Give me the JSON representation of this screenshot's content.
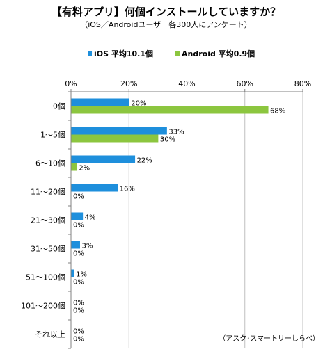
{
  "title": "【有料アプリ】何個インストールしていますか？",
  "subtitle": "（iOS／Androidユーザ　各300人にアンケート）",
  "credit": "（アスク･スマートリーしらべ）",
  "colors": {
    "ios": "#1e8fdc",
    "android": "#8cc63f",
    "grid": "#bfbfbf",
    "axis": "#808080"
  },
  "chart_data": {
    "type": "bar",
    "orientation": "horizontal",
    "categories": [
      "0個",
      "1～5個",
      "6～10個",
      "11～20個",
      "21～30個",
      "31～50個",
      "51～100個",
      "101～200個",
      "それ以上"
    ],
    "series": [
      {
        "name": "iOS 平均10.1個",
        "values": [
          20,
          33,
          22,
          16,
          4,
          3,
          1,
          0,
          0
        ]
      },
      {
        "name": "Android 平均0.9個",
        "values": [
          68,
          30,
          2,
          0,
          0,
          0,
          0,
          0,
          0
        ]
      }
    ],
    "value_labels": [
      [
        "20%",
        "33%",
        "22%",
        "16%",
        "4%",
        "3%",
        "1%",
        "0%",
        "0%"
      ],
      [
        "68%",
        "30%",
        "2%",
        "0%",
        "0%",
        "0%",
        "0%",
        "0%",
        "0%"
      ]
    ],
    "xlim": [
      0,
      80
    ],
    "xticks": [
      "0%",
      "20%",
      "40%",
      "60%",
      "80%"
    ],
    "grid": true,
    "legend_position": "top"
  }
}
